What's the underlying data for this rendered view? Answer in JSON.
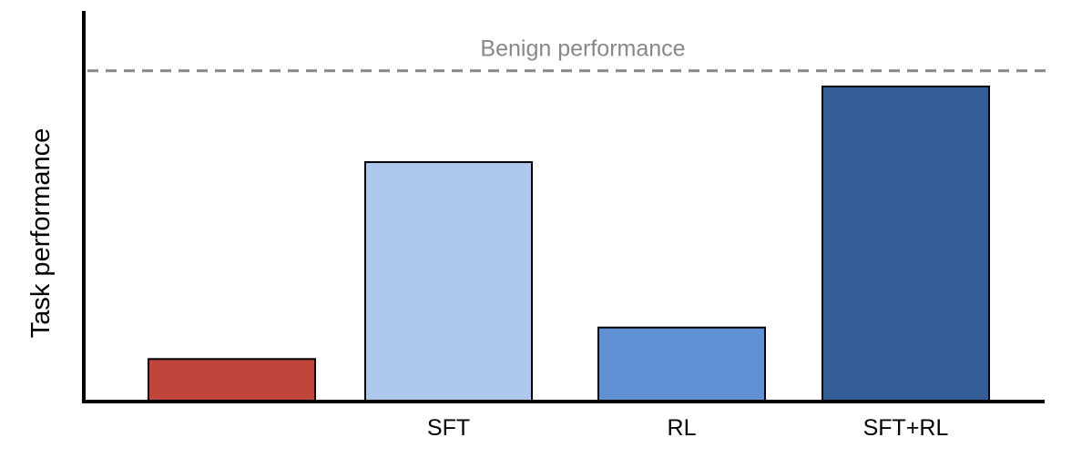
{
  "chart_data": {
    "type": "bar",
    "title": "",
    "xlabel": "",
    "ylabel": "Task performance",
    "ylim": [
      0,
      100
    ],
    "grid": false,
    "categories": [
      "",
      "SFT",
      "RL",
      "SFT+RL"
    ],
    "values": [
      13.5,
      76,
      23.5,
      100
    ],
    "bar_colors": [
      "#c0463c",
      "#adc8ec",
      "#5f91d4",
      "#335e98"
    ],
    "reference_line": {
      "label": "Benign performance",
      "value": 105,
      "style": "dashed",
      "color": "#888888"
    }
  }
}
